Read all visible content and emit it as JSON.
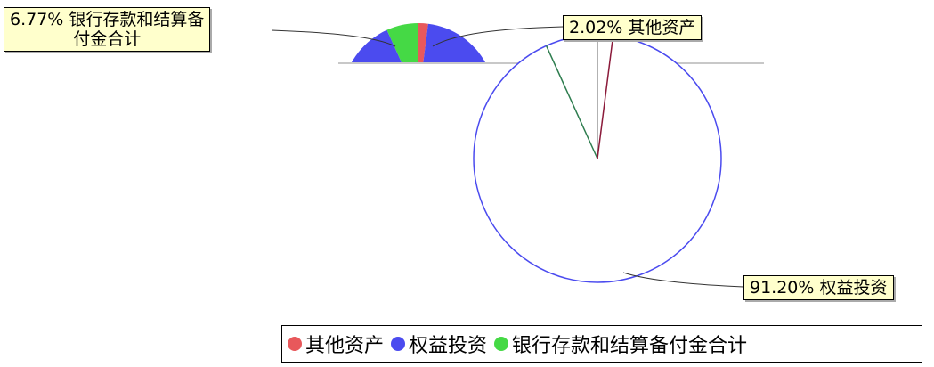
{
  "chart_data": {
    "type": "pie",
    "slices": [
      {
        "label": "其他资产",
        "percent": 2.02,
        "percent_label": "2.02%",
        "color": "#e8585b"
      },
      {
        "label": "权益投资",
        "percent": 91.2,
        "percent_label": "91.20%",
        "color": "#4b4bef"
      },
      {
        "label": "银行存款和结算备付金合计",
        "percent": 6.77,
        "percent_label": "6.77%",
        "color": "#45d945"
      }
    ],
    "legend_position": "bottom-right"
  },
  "callouts": {
    "green": {
      "line1": "6.77% 银行存款和结算备",
      "line2": "付金合计"
    },
    "red": {
      "line1": "2.02% 其他资产"
    },
    "blue": {
      "line1": "91.20% 权益投资"
    }
  },
  "legend": [
    {
      "label": "其他资产",
      "color": "#e8585b"
    },
    {
      "label": "权益投资",
      "color": "#4b4bef"
    },
    {
      "label": "银行存款和结算备付金合计",
      "color": "#45d945"
    }
  ]
}
